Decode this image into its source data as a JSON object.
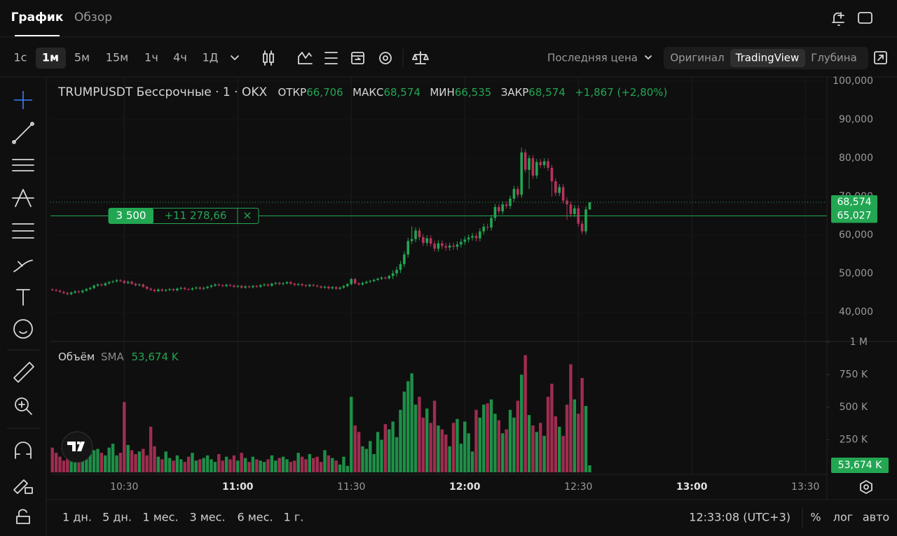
{
  "header": {
    "tabs": [
      "График",
      "Обзор"
    ]
  },
  "toolbar": {
    "intervals": [
      "1с",
      "1м",
      "5м",
      "15м",
      "1ч",
      "4ч",
      "1Д"
    ],
    "price_source": "Последняя цена",
    "views": [
      "Оригинал",
      "TradingView",
      "Глубина"
    ]
  },
  "chart_data": [
    {
      "type": "candlestick",
      "title": "TRUMPUSDT Бессрочные · 1 · OKX",
      "legend": {
        "labels": [
          "ОТКР",
          "МАКС",
          "МИН",
          "ЗАКР"
        ],
        "values": [
          "66,706",
          "68,574",
          "66,535",
          "68,574"
        ],
        "change": "+1,867 (+2,80%)"
      },
      "up_color": "#22a652",
      "down_color": "#b8325c",
      "grid": true,
      "open": [
        45.9,
        45.8,
        45.6,
        45.3,
        45.0,
        44.7,
        45.1,
        45.4,
        45.2,
        45.6,
        46.0,
        46.3,
        46.9,
        47.2,
        47.0,
        47.5,
        47.8,
        48.0,
        48.3,
        48.1,
        47.6,
        47.9,
        47.4,
        47.0,
        47.2,
        46.6,
        46.1,
        45.8,
        45.5,
        45.9,
        45.6,
        45.8,
        46.0,
        45.7,
        46.1,
        46.3,
        46.0,
        45.9,
        46.2,
        46.4,
        46.1,
        46.3,
        46.6,
        46.9,
        47.2,
        47.0,
        46.8,
        47.1,
        46.9,
        46.6,
        46.8,
        46.4,
        46.7,
        46.5,
        46.8,
        46.6,
        47.0,
        47.2,
        46.9,
        47.4,
        47.6,
        47.3,
        47.5,
        47.8,
        47.4,
        47.1,
        47.3,
        47.0,
        46.8,
        47.1,
        46.9,
        46.7,
        46.4,
        46.6,
        46.2,
        46.5,
        46.1,
        46.4,
        46.8,
        47.3,
        48.6,
        47.5,
        47.2,
        47.6,
        47.9,
        48.1,
        48.4,
        48.7,
        49.0,
        48.8,
        49.4,
        50.1,
        51.0,
        52.5,
        55.0,
        58.5,
        59.0,
        61.2,
        59.5,
        58.0,
        59.2,
        57.8,
        56.5,
        57.9,
        57.2,
        56.8,
        57.3,
        57.0,
        57.6,
        58.3,
        58.9,
        59.4,
        59.8,
        59.2,
        61.0,
        62.2,
        62.0,
        64.5,
        67.3,
        66.2,
        68.0,
        67.6,
        69.5,
        72.0,
        70.5,
        81.5,
        77.0,
        80.0,
        75.5,
        79.0,
        78.2,
        79.2,
        77.5,
        74.0,
        71.0,
        72.5,
        69.0,
        68.0,
        65.5,
        67.0,
        63.0,
        61.0,
        66.706
      ],
      "high": [
        46.2,
        46.1,
        45.9,
        45.6,
        45.3,
        45.4,
        45.7,
        45.7,
        45.9,
        46.3,
        46.6,
        47.2,
        47.5,
        47.5,
        47.8,
        48.1,
        48.3,
        48.6,
        48.6,
        48.4,
        48.2,
        48.2,
        47.7,
        47.5,
        47.5,
        46.9,
        46.4,
        46.1,
        46.2,
        46.2,
        46.1,
        46.3,
        46.3,
        46.4,
        46.6,
        46.6,
        46.3,
        46.5,
        46.7,
        46.7,
        46.6,
        46.9,
        47.2,
        47.5,
        47.5,
        47.3,
        47.4,
        47.4,
        47.2,
        47.1,
        47.1,
        47.0,
        47.0,
        47.1,
        47.1,
        47.3,
        47.5,
        47.5,
        47.7,
        47.9,
        47.9,
        47.8,
        48.1,
        48.1,
        47.7,
        47.6,
        47.6,
        47.3,
        47.4,
        47.4,
        47.2,
        47.0,
        46.9,
        46.9,
        46.8,
        46.8,
        46.7,
        47.1,
        47.6,
        48.9,
        48.9,
        47.8,
        47.9,
        48.2,
        48.4,
        48.7,
        49.0,
        49.3,
        49.3,
        49.7,
        50.9,
        51.8,
        53.3,
        55.8,
        59.3,
        62.3,
        62.0,
        62.0,
        60.3,
        60.0,
        60.0,
        58.6,
        58.7,
        58.7,
        58.0,
        58.1,
        58.1,
        58.4,
        59.1,
        59.7,
        60.2,
        60.6,
        60.6,
        61.8,
        63.0,
        63.0,
        65.3,
        68.1,
        68.1,
        68.8,
        68.8,
        70.3,
        72.8,
        72.8,
        82.7,
        82.3,
        80.8,
        80.8,
        79.8,
        79.8,
        80.0,
        80.0,
        78.3,
        74.8,
        73.3,
        73.3,
        69.8,
        68.8,
        67.8,
        67.8,
        63.8,
        67.5,
        68.574
      ],
      "low": [
        45.5,
        45.3,
        45.0,
        44.7,
        44.4,
        44.4,
        44.8,
        44.9,
        44.9,
        45.3,
        45.7,
        46.0,
        46.6,
        46.7,
        46.7,
        47.2,
        47.5,
        47.7,
        47.8,
        47.3,
        47.3,
        47.1,
        46.7,
        46.7,
        46.3,
        45.8,
        45.5,
        45.2,
        45.2,
        45.3,
        45.3,
        45.5,
        45.4,
        45.4,
        45.8,
        45.7,
        45.6,
        45.6,
        45.9,
        45.8,
        45.8,
        46.0,
        46.3,
        46.6,
        46.7,
        46.5,
        46.5,
        46.6,
        46.3,
        46.3,
        46.1,
        46.1,
        46.2,
        46.2,
        46.3,
        46.3,
        46.7,
        46.6,
        46.6,
        47.1,
        47.0,
        47.0,
        47.2,
        47.1,
        46.8,
        46.8,
        46.7,
        46.5,
        46.5,
        46.6,
        46.4,
        46.1,
        46.1,
        45.9,
        45.9,
        45.8,
        45.8,
        46.1,
        46.5,
        47.0,
        47.2,
        46.9,
        46.9,
        47.3,
        47.6,
        47.8,
        48.1,
        48.4,
        48.5,
        48.5,
        48.6,
        49.3,
        50.2,
        51.7,
        54.2,
        57.7,
        58.2,
        58.7,
        57.2,
        57.2,
        57.0,
        55.7,
        55.7,
        56.4,
        56.0,
        56.0,
        56.2,
        56.2,
        56.8,
        57.5,
        58.1,
        58.6,
        58.4,
        58.4,
        60.2,
        61.2,
        61.2,
        63.7,
        65.4,
        65.4,
        66.8,
        66.8,
        68.7,
        69.7,
        69.7,
        76.2,
        72.0,
        74.7,
        74.7,
        77.4,
        77.4,
        76.7,
        70.0,
        70.2,
        70.2,
        68.2,
        64.0,
        64.7,
        64.7,
        62.2,
        60.2,
        60.2,
        66.535
      ],
      "close": [
        45.8,
        45.6,
        45.3,
        45.0,
        44.7,
        45.1,
        45.4,
        45.2,
        45.6,
        46.0,
        46.3,
        46.9,
        47.2,
        47.0,
        47.5,
        47.8,
        48.0,
        48.3,
        48.1,
        47.6,
        47.9,
        47.4,
        47.0,
        47.2,
        46.6,
        46.1,
        45.8,
        45.5,
        45.9,
        45.6,
        45.8,
        46.0,
        45.7,
        46.1,
        46.3,
        46.0,
        45.9,
        46.2,
        46.4,
        46.1,
        46.3,
        46.6,
        46.9,
        47.2,
        47.0,
        46.8,
        47.1,
        46.9,
        46.6,
        46.8,
        46.4,
        46.7,
        46.5,
        46.8,
        46.6,
        47.0,
        47.2,
        46.9,
        47.4,
        47.6,
        47.3,
        47.5,
        47.8,
        47.4,
        47.1,
        47.3,
        47.0,
        46.8,
        47.1,
        46.9,
        46.7,
        46.4,
        46.6,
        46.2,
        46.5,
        46.1,
        46.4,
        46.8,
        47.3,
        48.6,
        47.5,
        47.2,
        47.6,
        47.9,
        48.1,
        48.4,
        48.7,
        49.0,
        48.8,
        49.4,
        50.1,
        51.0,
        52.5,
        55.0,
        58.5,
        59.0,
        61.2,
        59.5,
        58.0,
        59.2,
        57.8,
        56.5,
        57.9,
        57.2,
        56.8,
        57.3,
        57.0,
        57.6,
        58.3,
        58.9,
        59.4,
        59.8,
        59.2,
        61.0,
        62.2,
        62.0,
        64.5,
        67.3,
        66.2,
        68.0,
        67.6,
        69.5,
        72.0,
        70.5,
        81.5,
        77.0,
        80.0,
        75.5,
        79.0,
        78.2,
        79.2,
        77.5,
        74.0,
        71.0,
        72.5,
        69.0,
        68.0,
        65.5,
        67.0,
        63.0,
        61.0,
        66.706,
        68.574
      ],
      "xlim": [
        -0.5,
        204.7
      ],
      "xticks": [
        {
          "value": 19,
          "label": "10:30",
          "major": false
        },
        {
          "value": 49,
          "label": "11:00",
          "major": true
        },
        {
          "value": 79,
          "label": "11:30",
          "major": false
        },
        {
          "value": 109,
          "label": "12:00",
          "major": true
        },
        {
          "value": 139,
          "label": "12:30",
          "major": false
        },
        {
          "value": 169,
          "label": "13:00",
          "major": true
        },
        {
          "value": 199,
          "label": "13:30",
          "major": false
        }
      ],
      "ylim": [
        32.4,
        101.1
      ],
      "yticks": [
        {
          "value": 40,
          "label": "40,000"
        },
        {
          "value": 50,
          "label": "50,000"
        },
        {
          "value": 60,
          "label": "60,000"
        },
        {
          "value": 70,
          "label": "70,000"
        },
        {
          "value": 80,
          "label": "80,000"
        },
        {
          "value": 90,
          "label": "90,000"
        },
        {
          "value": 100,
          "label": "100,000"
        }
      ],
      "last_price": {
        "value": 68.574,
        "label": "68,574"
      },
      "position": {
        "price": {
          "value": 65.027,
          "label": "65,027"
        },
        "size": "3 500",
        "pnl": "+11 278,66",
        "close": "×"
      }
    },
    {
      "type": "volume",
      "title": "Объём",
      "indicator": "SMA",
      "indicator_value": {
        "value": 53674,
        "label": "53,674 K"
      },
      "values": [
        190000,
        150000,
        120000,
        90000,
        110000,
        130000,
        160000,
        180000,
        120000,
        100000,
        140000,
        170000,
        180000,
        150000,
        130000,
        190000,
        220000,
        130000,
        150000,
        540000,
        210000,
        170000,
        140000,
        160000,
        180000,
        130000,
        350000,
        200000,
        120000,
        100000,
        160000,
        110000,
        90000,
        130000,
        100000,
        80000,
        120000,
        150000,
        90000,
        100000,
        110000,
        130000,
        100000,
        80000,
        140000,
        90000,
        120000,
        100000,
        130000,
        90000,
        150000,
        110000,
        80000,
        120000,
        100000,
        90000,
        80000,
        100000,
        130000,
        90000,
        110000,
        120000,
        100000,
        80000,
        90000,
        150000,
        120000,
        100000,
        140000,
        110000,
        120000,
        80000,
        170000,
        130000,
        110000,
        90000,
        60000,
        120000,
        50000,
        580000,
        360000,
        310000,
        200000,
        180000,
        240000,
        140000,
        310000,
        250000,
        370000,
        330000,
        390000,
        270000,
        480000,
        620000,
        700000,
        760000,
        520000,
        580000,
        420000,
        490000,
        380000,
        550000,
        360000,
        330000,
        290000,
        200000,
        380000,
        410000,
        220000,
        390000,
        300000,
        160000,
        480000,
        420000,
        520000,
        530000,
        560000,
        450000,
        400000,
        300000,
        330000,
        480000,
        420000,
        550000,
        750000,
        900000,
        440000,
        360000,
        310000,
        380000,
        280000,
        580000,
        680000,
        430000,
        350000,
        280000,
        520000,
        830000,
        560000,
        450000,
        725000,
        510000,
        54000
      ],
      "ylim": [
        0,
        1005000
      ],
      "yticks": [
        {
          "value": 250000,
          "label": "250 K"
        },
        {
          "value": 500000,
          "label": "500 K"
        },
        {
          "value": 750000,
          "label": "750 K"
        },
        {
          "value": 1000000,
          "label": "1 M"
        }
      ]
    }
  ],
  "footer": {
    "ranges": [
      "1 дн.",
      "5 дн.",
      "1 мес.",
      "3 мес.",
      "6 мес.",
      "1 г."
    ],
    "time": "12:33:08 (UTC+3)",
    "options": [
      "%",
      "лог",
      "авто"
    ]
  }
}
